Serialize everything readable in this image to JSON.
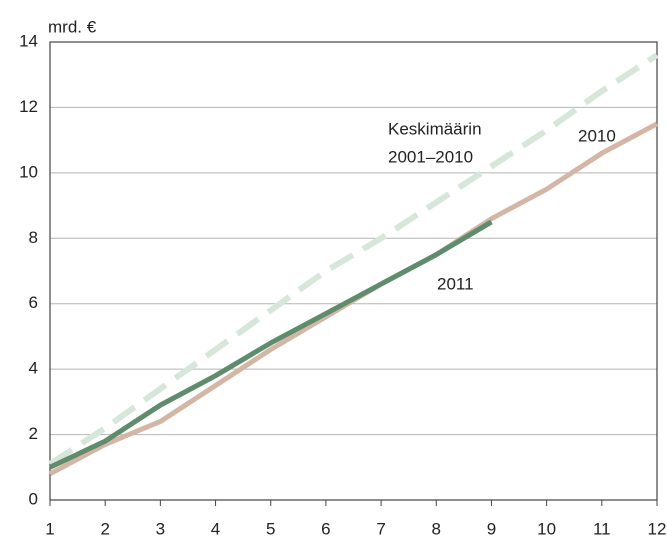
{
  "chart_data": {
    "type": "line",
    "y_label": "mrd. €",
    "x": [
      1,
      2,
      3,
      4,
      5,
      6,
      7,
      8,
      9,
      10,
      11,
      12
    ],
    "xlim": [
      1,
      12
    ],
    "xticks": [
      1,
      2,
      3,
      4,
      5,
      6,
      7,
      8,
      9,
      10,
      11,
      12
    ],
    "ylim": [
      0,
      14
    ],
    "yticks": [
      0,
      2,
      4,
      6,
      8,
      10,
      12,
      14
    ],
    "grid": true,
    "series": [
      {
        "name": [
          "Keskimäärin",
          "2001–2010"
        ],
        "color": "#d6e7d9",
        "dashed": true,
        "values": [
          1.1,
          2.2,
          3.4,
          4.6,
          5.8,
          7.0,
          8.0,
          9.1,
          10.2,
          11.3,
          12.5,
          13.6
        ]
      },
      {
        "name": [
          "2010"
        ],
        "color": "#d4b6a6",
        "dashed": false,
        "values": [
          0.8,
          1.7,
          2.4,
          3.5,
          4.6,
          5.6,
          6.6,
          7.5,
          8.6,
          9.5,
          10.6,
          11.5
        ]
      },
      {
        "name": [
          "2011"
        ],
        "color": "#5e8c6c",
        "dashed": false,
        "values": [
          1.0,
          1.8,
          2.9,
          3.8,
          4.8,
          5.7,
          6.6,
          7.5,
          8.5,
          null,
          null,
          null
        ]
      }
    ]
  }
}
